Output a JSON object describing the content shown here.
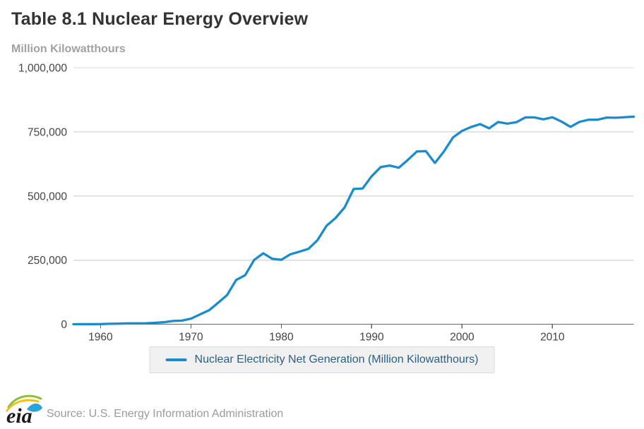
{
  "page": {
    "title": "Table 8.1 Nuclear Energy Overview",
    "units_label": "Million Kilowatthours"
  },
  "chart_data": {
    "type": "line",
    "title": "Table 8.1 Nuclear Energy Overview",
    "ylabel": "Million Kilowatthours",
    "xlabel": "",
    "xlim": [
      1957,
      2019
    ],
    "ylim": [
      0,
      1000000
    ],
    "grid": true,
    "legend_position": "bottom",
    "x_ticks": [
      1960,
      1970,
      1980,
      1990,
      2000,
      2010
    ],
    "y_ticks": [
      {
        "value": 0,
        "label": "0"
      },
      {
        "value": 250000,
        "label": "250,000"
      },
      {
        "value": 500000,
        "label": "500,000"
      },
      {
        "value": 750000,
        "label": "750,000"
      },
      {
        "value": 1000000,
        "label": "1,000,000"
      }
    ],
    "series": [
      {
        "name": "Nuclear Electricity Net Generation (Million Kilowatthours)",
        "color": "#1a8ccb",
        "x": [
          1957,
          1958,
          1959,
          1960,
          1961,
          1962,
          1963,
          1964,
          1965,
          1966,
          1967,
          1968,
          1969,
          1970,
          1971,
          1972,
          1973,
          1974,
          1975,
          1976,
          1977,
          1978,
          1979,
          1980,
          1981,
          1982,
          1983,
          1984,
          1985,
          1986,
          1987,
          1988,
          1989,
          1990,
          1991,
          1992,
          1993,
          1994,
          1995,
          1996,
          1997,
          1998,
          1999,
          2000,
          2001,
          2002,
          2003,
          2004,
          2005,
          2006,
          2007,
          2008,
          2009,
          2010,
          2011,
          2012,
          2013,
          2014,
          2015,
          2016,
          2017,
          2018,
          2019
        ],
        "values": [
          10,
          165,
          188,
          518,
          1692,
          2270,
          3212,
          3343,
          3657,
          5520,
          7655,
          12528,
          13928,
          21804,
          38105,
          54091,
          83479,
          114009,
          172505,
          191104,
          250883,
          276403,
          255155,
          251116,
          272674,
          282773,
          293677,
          327634,
          383691,
          414038,
          455270,
          526973,
          529355,
          576862,
          612565,
          618776,
          610291,
          640440,
          673402,
          674729,
          628644,
          673702,
          728254,
          753893,
          768826,
          780064,
          763733,
          788528,
          781986,
          787219,
          806425,
          806208,
          798855,
          806968,
          790204,
          769331,
          789016,
          797166,
          797178,
          805694,
          804950,
          807084,
          809409
        ]
      }
    ]
  },
  "legend": {
    "items": [
      {
        "label": "Nuclear Electricity Net Generation (Million Kilowatthours)",
        "color": "#1a8ccb"
      }
    ]
  },
  "footer": {
    "logo_text": "eia",
    "source": "Source: U.S. Energy Information Administration"
  },
  "colors": {
    "accent_blue": "#1a8ccb",
    "grid_line": "#d9d9d9",
    "axis_line": "#666666",
    "tick_text": "#444444",
    "title_text": "#333333",
    "subtitle_text": "#a1a1a1",
    "legend_bg": "#f0f0f0",
    "legend_border": "#dcdcdc",
    "legend_text": "#2c6083",
    "source_text": "#9b9b9b",
    "logo_green": "#8cbf3f",
    "logo_yellow": "#f2c01e",
    "logo_blue": "#2aa3dd"
  }
}
